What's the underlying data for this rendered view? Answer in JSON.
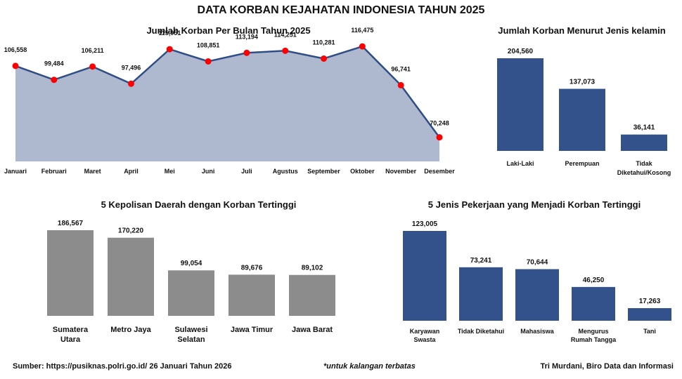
{
  "title": "DATA KORBAN KEJAHATAN INDONESIA TAHUN 2025",
  "footer": {
    "source": "Sumber: https://pusiknas.polri.go.id/ 26 Januari Tahun 2026",
    "note": "*untuk kalangan terbatas",
    "author": "Tri Murdani, Biro Data dan Informasi"
  },
  "colors": {
    "area": "#aeb9d0",
    "line": "#2f4d86",
    "marker": "#ff0000",
    "navy": "#33528c",
    "gray": "#8c8c8c"
  },
  "chart_data": [
    {
      "type": "area",
      "title": "Jumlah Korban Per Bulan Tahun 2025",
      "categories": [
        "Januari",
        "Februari",
        "Maret",
        "April",
        "Mei",
        "Juni",
        "Juli",
        "Agustus",
        "September",
        "Oktober",
        "November",
        "Desember"
      ],
      "values": [
        106558,
        99484,
        106211,
        97496,
        115051,
        108851,
        113194,
        114251,
        110281,
        116475,
        96741,
        70248
      ],
      "labels": [
        "106,558",
        "99,484",
        "106,211",
        "97,496",
        "115,051",
        "108,851",
        "113,194",
        "114,251",
        "110,281",
        "116,475",
        "96,741",
        "70,248"
      ],
      "ylim": [
        58000,
        124000
      ]
    },
    {
      "type": "bar",
      "title": "Jumlah Korban Menurut Jenis kelamin",
      "categories": [
        [
          "Laki-Laki"
        ],
        [
          "Perempuan"
        ],
        [
          "Tidak",
          "Diketahui/Kosong"
        ]
      ],
      "values": [
        204560,
        137073,
        36141
      ],
      "labels": [
        "204,560",
        "137,073",
        "36,141"
      ],
      "ylim": [
        0,
        204560
      ]
    },
    {
      "type": "bar",
      "title": "5 Kepolisan Daerah dengan Korban Tertinggi",
      "categories": [
        [
          "Sumatera",
          "Utara"
        ],
        [
          "Metro Jaya"
        ],
        [
          "Sulawesi",
          "Selatan"
        ],
        [
          "Jawa Timur"
        ],
        [
          "Jawa Barat"
        ]
      ],
      "values": [
        186567,
        170220,
        99054,
        89676,
        89102
      ],
      "labels": [
        "186,567",
        "170,220",
        "99,054",
        "89,676",
        "89,102"
      ],
      "ylim": [
        0,
        186567
      ]
    },
    {
      "type": "bar",
      "title": "5 Jenis Pekerjaan yang Menjadi Korban Tertinggi",
      "categories": [
        [
          "Karyawan",
          "Swasta"
        ],
        [
          "Tidak Diketahui"
        ],
        [
          "Mahasiswa"
        ],
        [
          "Mengurus",
          "Rumah Tangga"
        ],
        [
          "Tani"
        ]
      ],
      "values": [
        123005,
        73241,
        70644,
        46250,
        17263
      ],
      "labels": [
        "123,005",
        "73,241",
        "70,644",
        "46,250",
        "17,263"
      ],
      "ylim": [
        0,
        123005
      ]
    }
  ]
}
